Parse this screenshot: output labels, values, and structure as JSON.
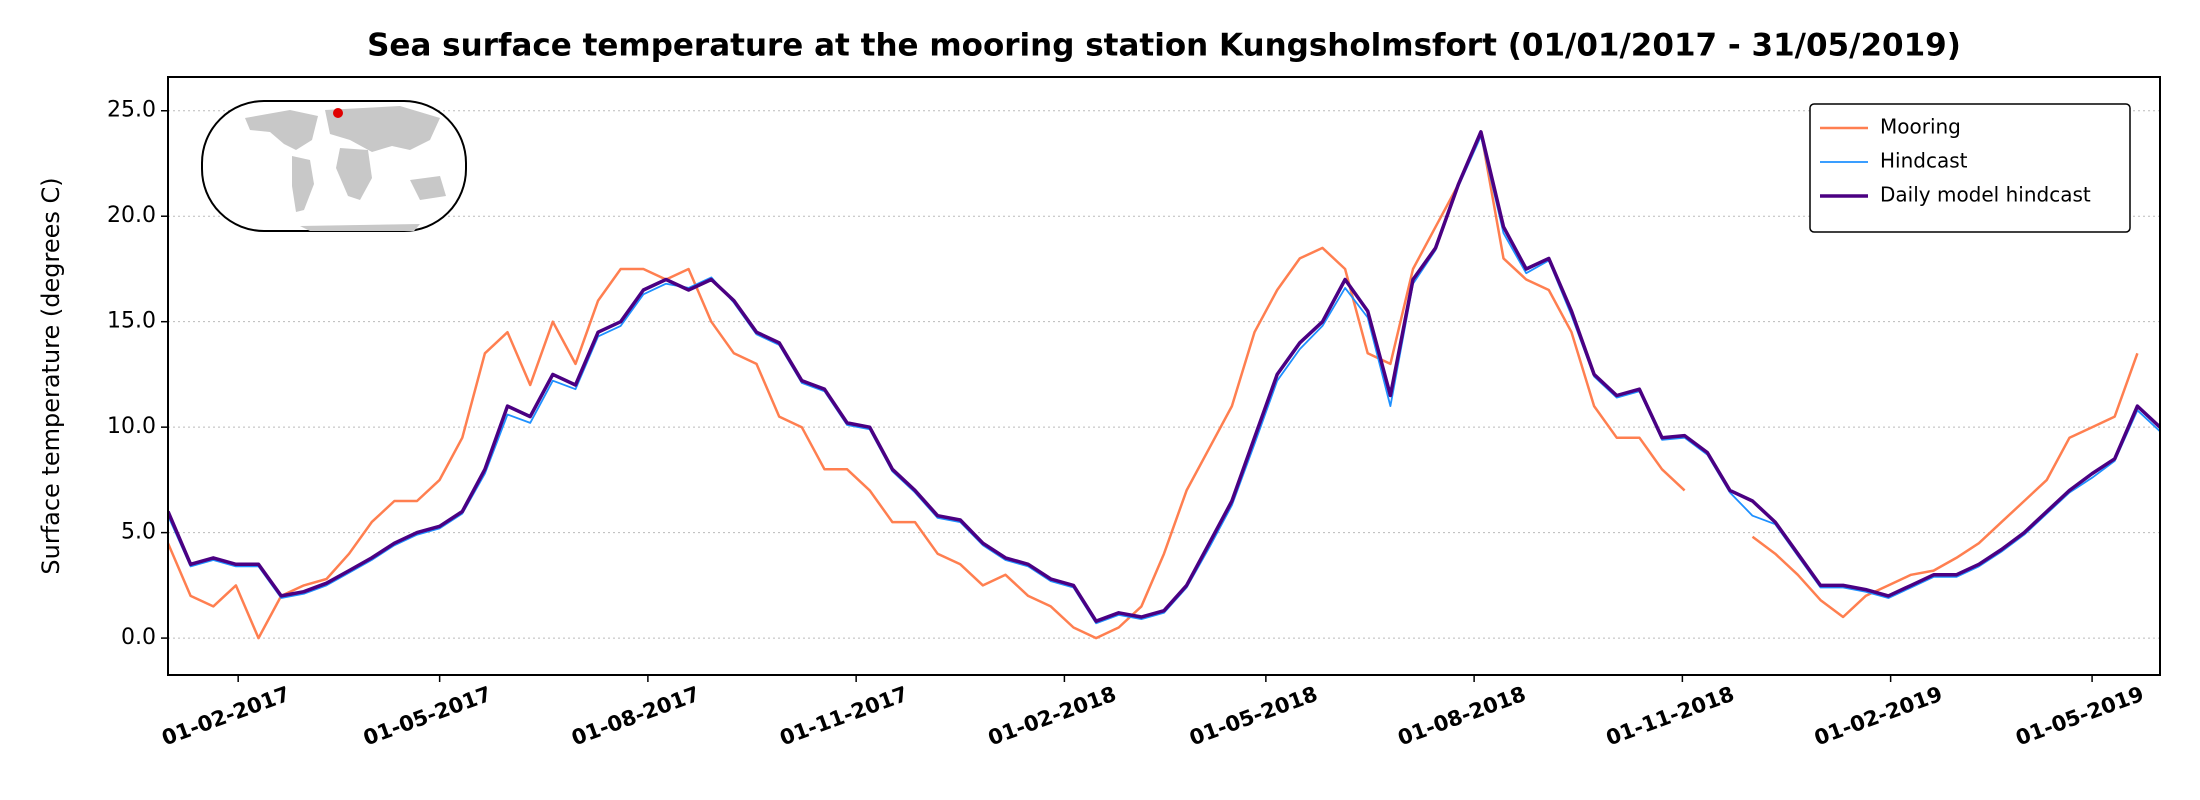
{
  "chart_data": {
    "type": "line",
    "title": "Sea surface temperature at the mooring station Kungsholmsfort (01/01/2017 - 31/05/2019)",
    "y_label": "Surface temperature (degrees C)",
    "x": [
      "2017-01-01",
      "2017-01-11",
      "2017-01-21",
      "2017-01-31",
      "2017-02-10",
      "2017-02-20",
      "2017-03-02",
      "2017-03-12",
      "2017-03-22",
      "2017-04-01",
      "2017-04-11",
      "2017-04-21",
      "2017-05-01",
      "2017-05-11",
      "2017-05-21",
      "2017-05-31",
      "2017-06-10",
      "2017-06-20",
      "2017-06-30",
      "2017-07-10",
      "2017-07-20",
      "2017-07-30",
      "2017-08-09",
      "2017-08-19",
      "2017-08-29",
      "2017-09-08",
      "2017-09-18",
      "2017-09-28",
      "2017-10-08",
      "2017-10-18",
      "2017-10-28",
      "2017-11-07",
      "2017-11-17",
      "2017-11-27",
      "2017-12-07",
      "2017-12-17",
      "2017-12-27",
      "2018-01-06",
      "2018-01-16",
      "2018-01-26",
      "2018-02-05",
      "2018-02-15",
      "2018-02-25",
      "2018-03-07",
      "2018-03-17",
      "2018-03-27",
      "2018-04-06",
      "2018-04-16",
      "2018-04-26",
      "2018-05-06",
      "2018-05-16",
      "2018-05-26",
      "2018-06-05",
      "2018-06-15",
      "2018-06-25",
      "2018-07-05",
      "2018-07-15",
      "2018-07-25",
      "2018-08-04",
      "2018-08-14",
      "2018-08-24",
      "2018-09-03",
      "2018-09-13",
      "2018-09-23",
      "2018-10-03",
      "2018-10-13",
      "2018-10-23",
      "2018-11-02",
      "2018-11-12",
      "2018-11-22",
      "2018-12-02",
      "2018-12-12",
      "2018-12-22",
      "2019-01-01",
      "2019-01-11",
      "2019-01-21",
      "2019-01-31",
      "2019-02-10",
      "2019-02-20",
      "2019-03-02",
      "2019-03-12",
      "2019-03-22",
      "2019-04-01",
      "2019-04-11",
      "2019-04-21",
      "2019-05-01",
      "2019-05-11",
      "2019-05-21",
      "2019-05-31"
    ],
    "series": [
      {
        "name": "Mooring",
        "color": "#ff7f50",
        "width": 2.5,
        "values": [
          4.5,
          2.0,
          1.5,
          2.5,
          0.0,
          2.0,
          2.5,
          2.8,
          4.0,
          5.5,
          6.5,
          6.5,
          7.5,
          9.5,
          13.5,
          14.5,
          12.0,
          15.0,
          13.0,
          16.0,
          17.5,
          17.5,
          17.0,
          17.5,
          15.0,
          13.5,
          13.0,
          10.5,
          10.0,
          8.0,
          8.0,
          7.0,
          5.5,
          5.5,
          4.0,
          3.5,
          2.5,
          3.0,
          2.0,
          1.5,
          0.5,
          0.0,
          0.5,
          1.5,
          4.0,
          7.0,
          9.0,
          11.0,
          14.5,
          16.5,
          18.0,
          18.5,
          17.5,
          13.5,
          13.0,
          17.5,
          19.5,
          21.5,
          24.0,
          18.0,
          17.0,
          16.5,
          14.5,
          11.0,
          9.5,
          9.5,
          8.0,
          7.0,
          null,
          null,
          4.8,
          4.0,
          3.0,
          1.8,
          1.0,
          2.0,
          2.5,
          3.0,
          3.2,
          3.8,
          4.5,
          5.5,
          6.5,
          7.5,
          9.5,
          10.0,
          10.5,
          13.5,
          null
        ]
      },
      {
        "name": "Hindcast",
        "color": "#1e90ff",
        "width": 1.8,
        "values": [
          5.8,
          3.4,
          3.7,
          3.4,
          3.4,
          1.9,
          2.1,
          2.5,
          3.1,
          3.7,
          4.4,
          4.9,
          5.2,
          5.9,
          7.8,
          10.6,
          10.2,
          12.2,
          11.8,
          14.3,
          14.8,
          16.3,
          16.8,
          16.6,
          17.1,
          15.9,
          14.4,
          13.9,
          12.1,
          11.7,
          10.1,
          9.9,
          7.9,
          6.9,
          5.7,
          5.5,
          4.4,
          3.7,
          3.4,
          2.7,
          2.4,
          0.7,
          1.1,
          0.9,
          1.2,
          2.4,
          4.3,
          6.3,
          9.2,
          12.2,
          13.7,
          14.8,
          16.6,
          15.2,
          11.0,
          16.8,
          18.4,
          21.4,
          23.8,
          19.2,
          17.3,
          17.9,
          15.3,
          12.4,
          11.4,
          11.7,
          9.4,
          9.5,
          8.7,
          6.9,
          5.8,
          5.4,
          3.9,
          2.4,
          2.4,
          2.2,
          1.9,
          2.4,
          2.9,
          2.9,
          3.4,
          4.1,
          4.9,
          5.9,
          6.9,
          7.6,
          8.4,
          10.8,
          9.8
        ]
      },
      {
        "name": "Daily model hindcast",
        "color": "#4b0082",
        "width": 3.5,
        "values": [
          6.0,
          3.5,
          3.8,
          3.5,
          3.5,
          2.0,
          2.2,
          2.6,
          3.2,
          3.8,
          4.5,
          5.0,
          5.3,
          6.0,
          8.0,
          11.0,
          10.5,
          12.5,
          12.0,
          14.5,
          15.0,
          16.5,
          17.0,
          16.5,
          17.0,
          16.0,
          14.5,
          14.0,
          12.2,
          11.8,
          10.2,
          10.0,
          8.0,
          7.0,
          5.8,
          5.6,
          4.5,
          3.8,
          3.5,
          2.8,
          2.5,
          0.8,
          1.2,
          1.0,
          1.3,
          2.5,
          4.5,
          6.5,
          9.5,
          12.5,
          14.0,
          15.0,
          17.0,
          15.5,
          11.5,
          17.0,
          18.5,
          21.5,
          24.0,
          19.5,
          17.5,
          18.0,
          15.5,
          12.5,
          11.5,
          11.8,
          9.5,
          9.6,
          8.8,
          7.0,
          6.5,
          5.5,
          4.0,
          2.5,
          2.5,
          2.3,
          2.0,
          2.5,
          3.0,
          3.0,
          3.5,
          4.2,
          5.0,
          6.0,
          7.0,
          7.8,
          8.5,
          11.0,
          10.0
        ]
      }
    ],
    "xlim": [
      "2017-01-01",
      "2019-05-31"
    ],
    "xticks": [
      {
        "value": "2017-02-01",
        "label": "01-02-2017"
      },
      {
        "value": "2017-05-01",
        "label": "01-05-2017"
      },
      {
        "value": "2017-08-01",
        "label": "01-08-2017"
      },
      {
        "value": "2017-11-01",
        "label": "01-11-2017"
      },
      {
        "value": "2018-02-01",
        "label": "01-02-2018"
      },
      {
        "value": "2018-05-01",
        "label": "01-05-2018"
      },
      {
        "value": "2018-08-01",
        "label": "01-08-2018"
      },
      {
        "value": "2018-11-01",
        "label": "01-11-2018"
      },
      {
        "value": "2019-02-01",
        "label": "01-02-2019"
      },
      {
        "value": "2019-05-01",
        "label": "01-05-2019"
      }
    ],
    "ylim": [
      -1.75,
      26.6
    ],
    "yticks": [
      {
        "value": 0,
        "label": "0.0"
      },
      {
        "value": 5,
        "label": "5.0"
      },
      {
        "value": 10,
        "label": "10.0"
      },
      {
        "value": 15,
        "label": "15.0"
      },
      {
        "value": 20,
        "label": "20.0"
      },
      {
        "value": 25,
        "label": "25.0"
      }
    ],
    "grid": true,
    "legend": "upper right"
  }
}
